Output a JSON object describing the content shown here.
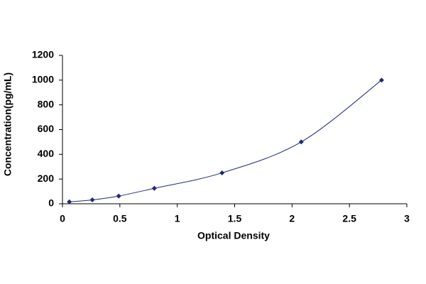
{
  "chart_data": {
    "type": "line",
    "x_label": "Optical Density",
    "y_label": "Concentration(pg/mL)",
    "x": [
      0.06,
      0.26,
      0.49,
      0.8,
      1.39,
      2.08,
      2.78
    ],
    "series": [
      {
        "color": "#1f2a7a",
        "values": [
          15.6,
          31.25,
          62.5,
          125,
          250,
          500,
          1000
        ]
      }
    ],
    "marker": "diamond",
    "smooth": true,
    "xlim": [
      0,
      3
    ],
    "xticks": [
      0,
      0.5,
      1,
      1.5,
      2,
      2.5,
      3
    ],
    "ylim": [
      0,
      1200
    ],
    "yticks": [
      0,
      200,
      400,
      600,
      800,
      1000,
      1200
    ],
    "grid": false
  }
}
